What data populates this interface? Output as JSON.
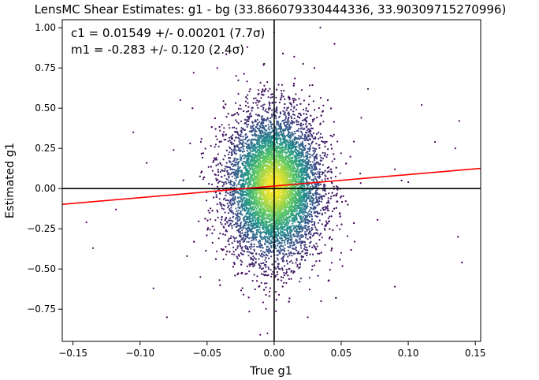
{
  "chart_data": {
    "type": "scatter",
    "title": "LensMC Shear Estimates: g1  - bg (33.866079330444336, 33.90309715270996)",
    "xlabel": "True g1",
    "ylabel": "Estimated g1",
    "xlim": [
      -0.158,
      0.154
    ],
    "ylim": [
      -0.95,
      1.05
    ],
    "x_ticks": [
      -0.15,
      -0.1,
      -0.05,
      0.0,
      0.05,
      0.1,
      0.15
    ],
    "x_tick_labels": [
      "−0.15",
      "−0.10",
      "−0.05",
      "0.00",
      "0.05",
      "0.10",
      "0.15"
    ],
    "y_ticks": [
      -0.75,
      -0.5,
      -0.25,
      0.0,
      0.25,
      0.5,
      0.75,
      1.0
    ],
    "y_tick_labels": [
      "−0.75",
      "−0.50",
      "−0.25",
      "0.00",
      "0.25",
      "0.50",
      "0.75",
      "1.00"
    ],
    "annotations": {
      "c1": "c1 = 0.01549 +/- 0.00201 (7.7σ)",
      "m1": "m1 = -0.283 +/- 0.120 (2.4σ)"
    },
    "fit_line": {
      "slope": 0.717,
      "intercept": 0.01549,
      "color": "#ff0000"
    },
    "reference_lines": {
      "x": 0,
      "y": 0,
      "color": "#000000"
    },
    "point_distribution": {
      "x_center": 0.0,
      "x_spread": 0.018,
      "y_center": 0.0155,
      "y_spread": 0.23,
      "colormap": "viridis",
      "density_colors": [
        "#440154",
        "#3b528b",
        "#21918c",
        "#5ec962",
        "#fde725"
      ]
    },
    "outliers": [
      [
        -0.135,
        -0.37
      ],
      [
        -0.118,
        -0.13
      ],
      [
        -0.14,
        -0.21
      ],
      [
        -0.105,
        0.35
      ],
      [
        -0.095,
        0.16
      ],
      [
        -0.09,
        -0.62
      ],
      [
        -0.08,
        -0.8
      ],
      [
        -0.075,
        0.24
      ],
      [
        -0.07,
        0.55
      ],
      [
        -0.065,
        -0.42
      ],
      [
        -0.06,
        0.72
      ],
      [
        -0.055,
        -0.55
      ],
      [
        0.135,
        0.25
      ],
      [
        0.137,
        -0.3
      ],
      [
        0.14,
        -0.46
      ],
      [
        0.138,
        0.42
      ],
      [
        0.12,
        0.29
      ],
      [
        0.11,
        0.52
      ],
      [
        0.1,
        0.04
      ],
      [
        0.095,
        0.05
      ],
      [
        0.09,
        0.12
      ],
      [
        0.09,
        -0.61
      ],
      [
        0.07,
        0.62
      ],
      [
        0.065,
        0.44
      ],
      [
        0.06,
        -0.33
      ],
      [
        0.055,
        -0.1
      ],
      [
        0.05,
        -0.4
      ],
      [
        0.045,
        0.9
      ],
      [
        0.04,
        0.55
      ],
      [
        0.035,
        -0.7
      ],
      [
        0.03,
        0.75
      ],
      [
        0.025,
        -0.8
      ],
      [
        -0.02,
        0.88
      ],
      [
        0.0,
        0.97
      ],
      [
        -0.005,
        -0.9
      ],
      [
        0.015,
        0.82
      ]
    ]
  }
}
